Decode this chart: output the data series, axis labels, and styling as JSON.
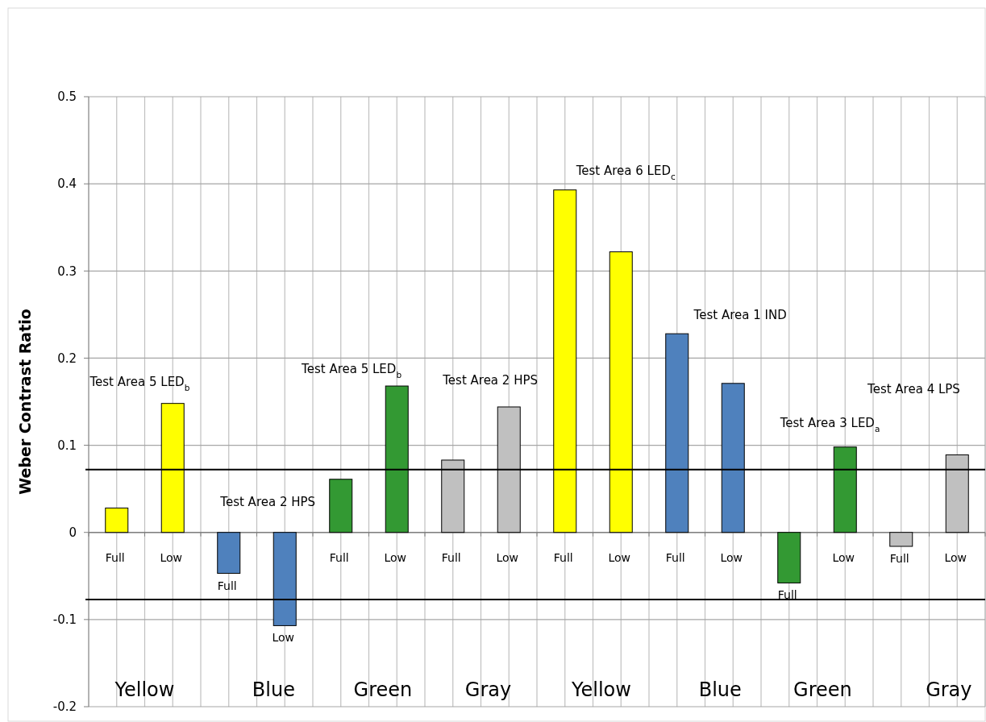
{
  "chart_data": {
    "type": "bar",
    "ylabel": "Weber Contrast Ratio",
    "categories": [
      "Full",
      "Low",
      "Full",
      "Low",
      "Full",
      "Low",
      "Full",
      "Low",
      "Full",
      "Low",
      "Full",
      "Low",
      "Full",
      "Low",
      "Full",
      "Low"
    ],
    "values": [
      0.028,
      0.148,
      -0.047,
      -0.107,
      0.061,
      0.168,
      0.083,
      0.144,
      0.393,
      0.322,
      0.228,
      0.171,
      -0.058,
      0.098,
      -0.016,
      0.089
    ],
    "colors": [
      "#ffff00",
      "#ffff00",
      "#4f81bd",
      "#4f81bd",
      "#339933",
      "#339933",
      "#c0c0c0",
      "#c0c0c0",
      "#ffff00",
      "#ffff00",
      "#4f81bd",
      "#4f81bd",
      "#339933",
      "#339933",
      "#c0c0c0",
      "#c0c0c0"
    ],
    "ylim": [
      -0.2,
      0.5
    ],
    "yticks": [
      -0.2,
      -0.1,
      0,
      0.1,
      0.2,
      0.3,
      0.4,
      0.5
    ],
    "grid": true,
    "ref_lines": [
      {
        "axis": "y",
        "value": 0.072,
        "color": "#000000"
      },
      {
        "axis": "y",
        "value": -0.077,
        "color": "#000000"
      }
    ],
    "annotations": [
      "Test Area 5 LED$_{b}$",
      "Test Area 2 HPS",
      "Test Area 5 LED$_{b}$",
      "Test Area 2 HPS",
      "Test Area 6 LED$_{c}$",
      "Test Area 1 IND",
      "Test Area 3 LED$_{a}$",
      "Test Area 4 LPS",
      "Yellow",
      "Blue",
      "Green",
      "Gray",
      "Yellow",
      "Blue",
      "Green",
      "Gray"
    ]
  }
}
